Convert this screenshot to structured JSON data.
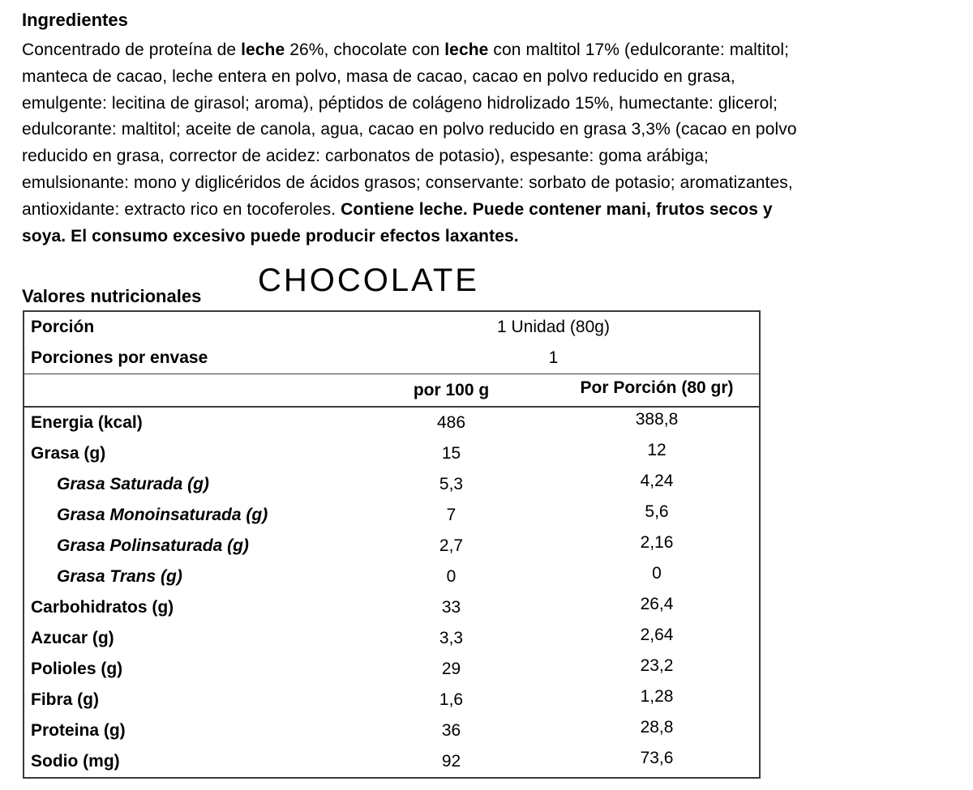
{
  "page": {
    "background": "#ffffff",
    "text_color": "#000000",
    "table_border_color": "#3a3a3a"
  },
  "ingredients": {
    "heading": "Ingredientes",
    "lines": [
      [
        {
          "t": "Concentrado de proteína de ",
          "b": false
        },
        {
          "t": "leche",
          "b": true
        },
        {
          "t": " 26%, chocolate con ",
          "b": false
        },
        {
          "t": "leche",
          "b": true
        },
        {
          "t": " con maltitol 17% (edulcorante: maltitol;",
          "b": false
        }
      ],
      [
        {
          "t": "manteca de cacao, leche entera en polvo, masa de cacao, cacao en polvo reducido en grasa,",
          "b": false
        }
      ],
      [
        {
          "t": "emulgente: lecitina de girasol; aroma), péptidos de colágeno hidrolizado 15%, humectante: glicerol;",
          "b": false
        }
      ],
      [
        {
          "t": "edulcorante: maltitol; aceite de canola, agua, cacao en polvo reducido en grasa 3,3% (cacao en polvo",
          "b": false
        }
      ],
      [
        {
          "t": "reducido en grasa, corrector de acidez: carbonatos de potasio), espesante: goma arábiga;",
          "b": false
        }
      ],
      [
        {
          "t": "emulsionante: mono y diglicéridos de ácidos grasos; conservante: sorbato de potasio; aromatizantes,",
          "b": false
        }
      ],
      [
        {
          "t": "antioxidante: extracto rico en tocoferoles. ",
          "b": false
        },
        {
          "t": "Contiene leche. Puede contener mani, frutos secos y",
          "b": true
        }
      ],
      [
        {
          "t": "soya. El consumo excesivo puede producir efectos laxantes.",
          "b": true
        }
      ]
    ]
  },
  "product_title": "CHOCOLATE",
  "nutrition": {
    "section_label": "Valores nutricionales",
    "serving_rows": [
      {
        "label": "Porción",
        "value": "1 Unidad (80g)"
      },
      {
        "label": "Porciones por envase",
        "value": "1"
      }
    ],
    "columns": {
      "per100": "por 100 g",
      "portion": "Por Porción (80 gr)"
    },
    "rows": [
      {
        "label": "Energia (kcal)",
        "per100": "486",
        "portion": "388,8",
        "sub": false
      },
      {
        "label": "Grasa (g)",
        "per100": "15",
        "portion": "12",
        "sub": false
      },
      {
        "label": "Grasa Saturada (g)",
        "per100": "5,3",
        "portion": "4,24",
        "sub": true
      },
      {
        "label": "Grasa Monoinsaturada (g)",
        "per100": "7",
        "portion": "5,6",
        "sub": true
      },
      {
        "label": "Grasa Polinsaturada (g)",
        "per100": "2,7",
        "portion": "2,16",
        "sub": true
      },
      {
        "label": "Grasa Trans (g)",
        "per100": "0",
        "portion": "0",
        "sub": true
      },
      {
        "label": "Carbohidratos (g)",
        "per100": "33",
        "portion": "26,4",
        "sub": false
      },
      {
        "label": "Azucar (g)",
        "per100": "3,3",
        "portion": "2,64",
        "sub": false
      },
      {
        "label": "Polioles (g)",
        "per100": "29",
        "portion": "23,2",
        "sub": false
      },
      {
        "label": "Fibra (g)",
        "per100": "1,6",
        "portion": "1,28",
        "sub": false
      },
      {
        "label": "Proteina (g)",
        "per100": "36",
        "portion": "28,8",
        "sub": false
      },
      {
        "label": "Sodio (mg)",
        "per100": "92",
        "portion": "73,6",
        "sub": false
      }
    ]
  }
}
